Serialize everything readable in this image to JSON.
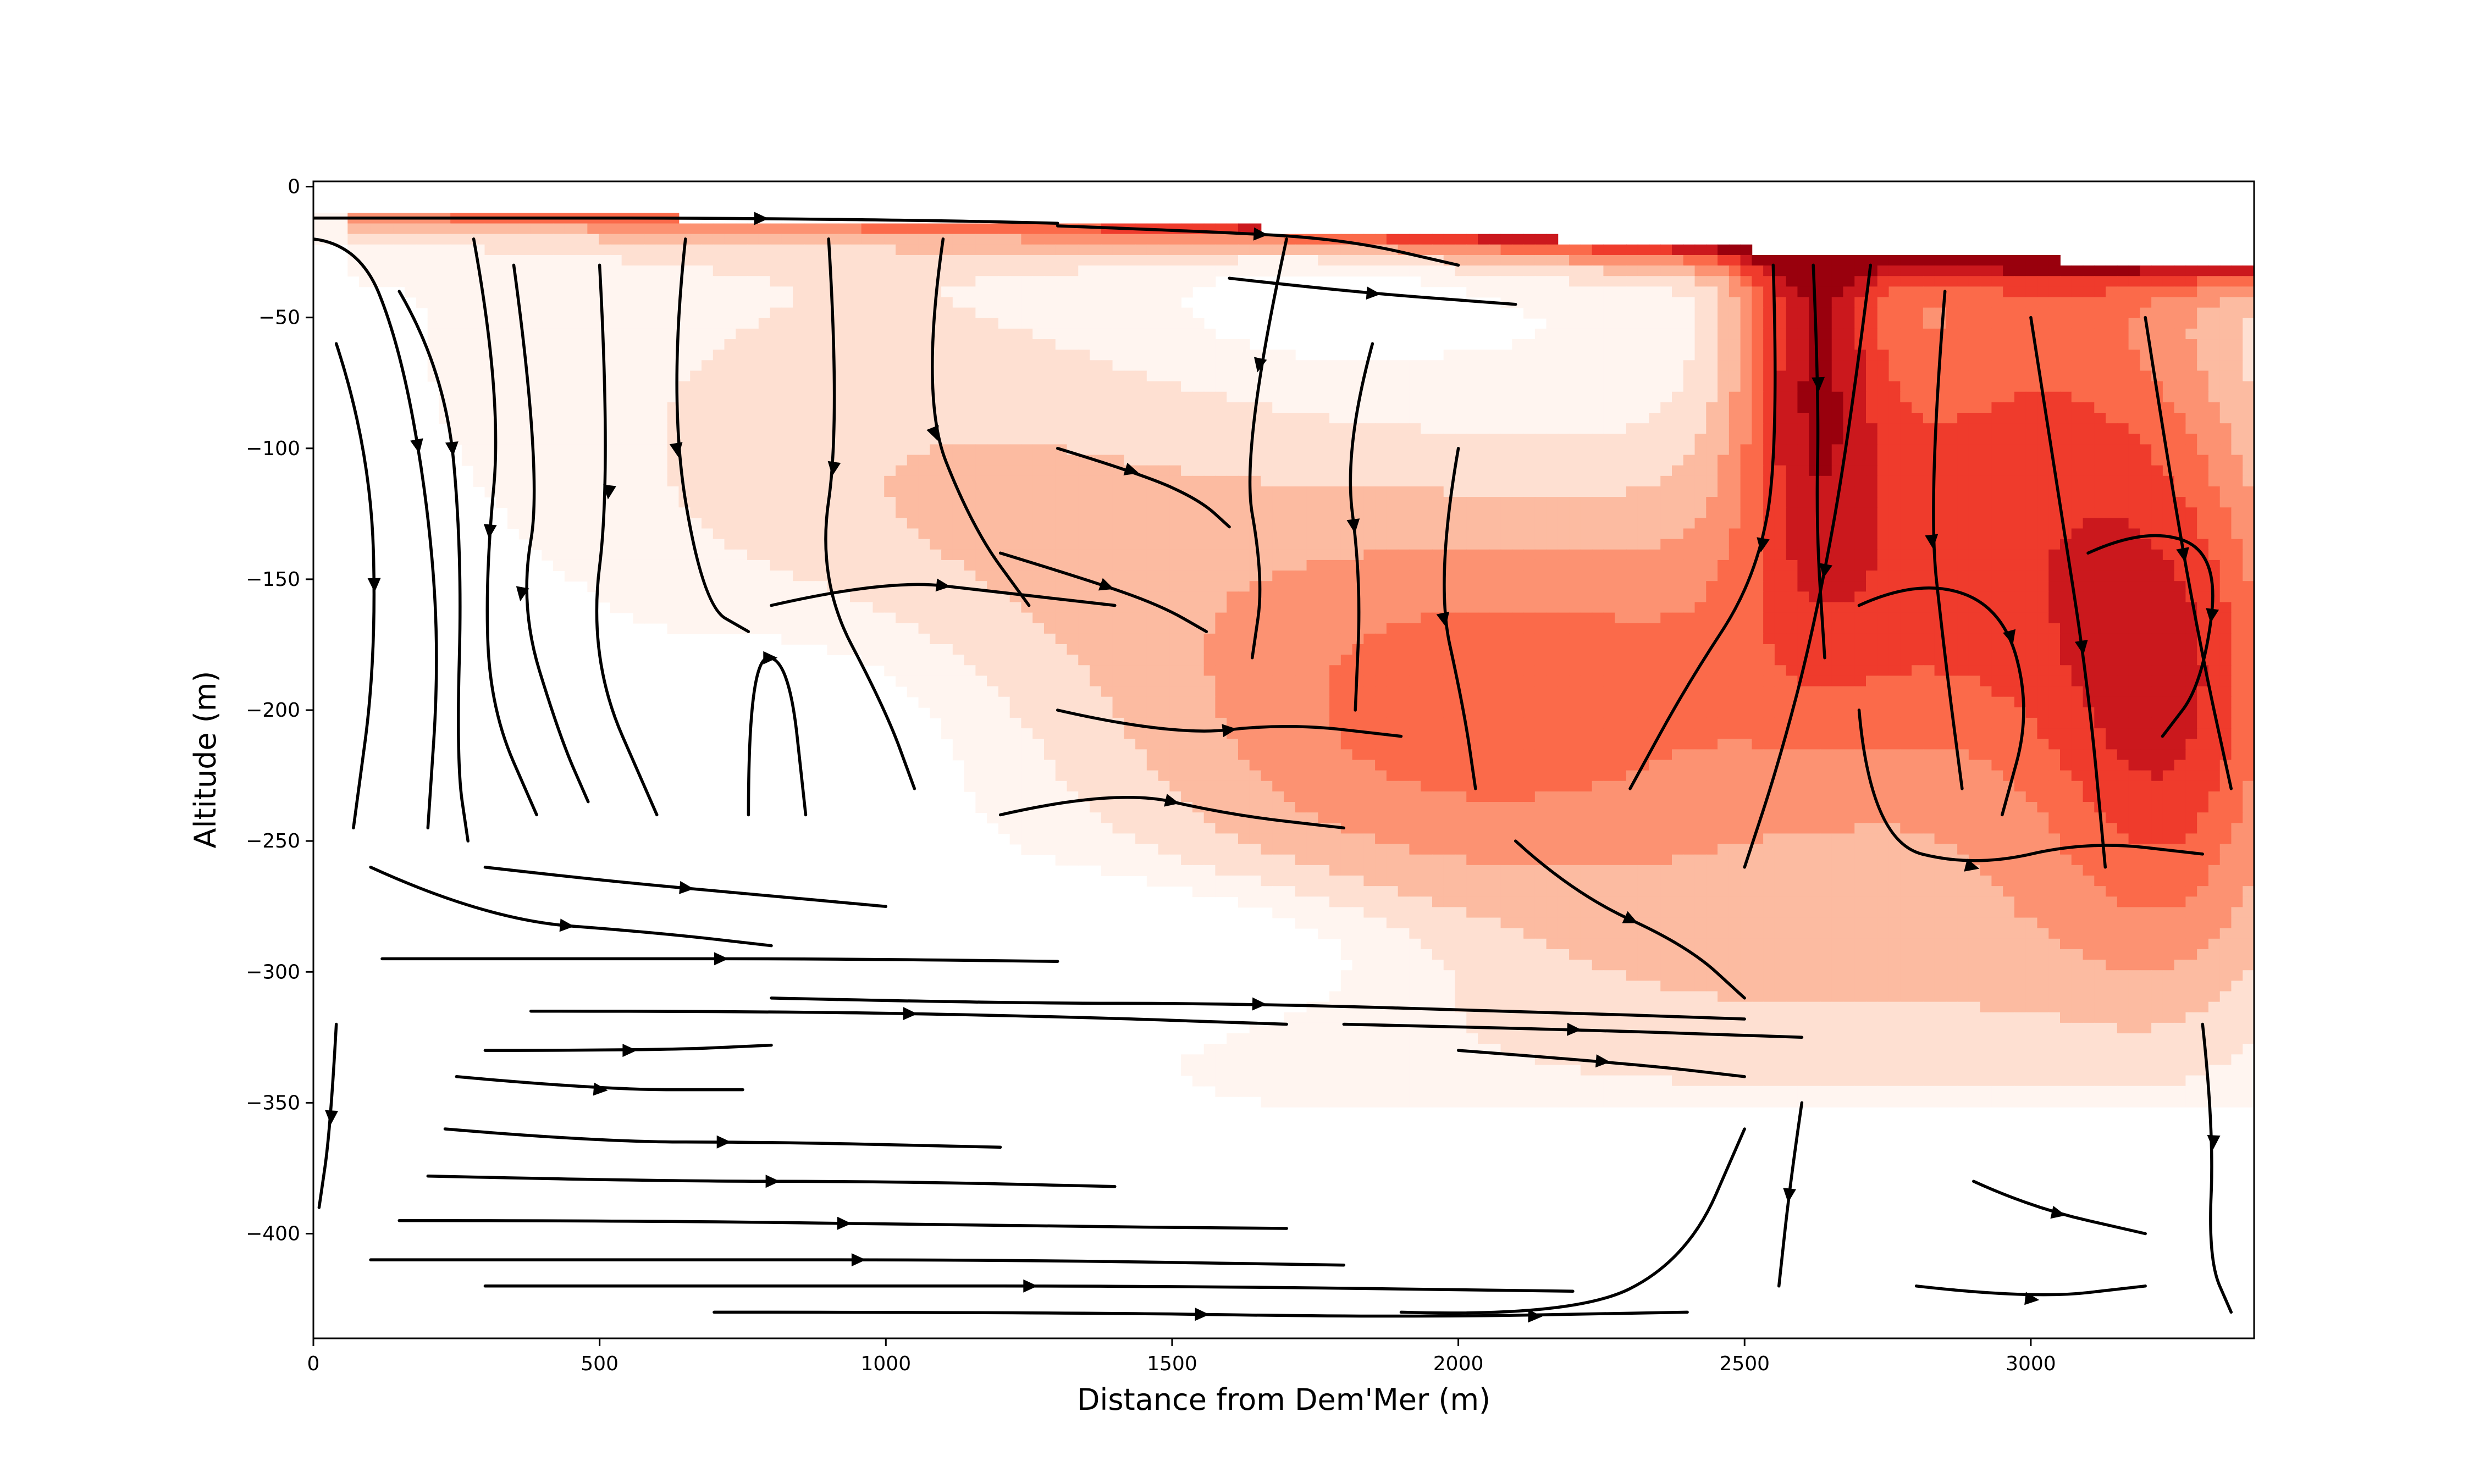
{
  "chart_data": {
    "type": "contour",
    "title": "",
    "xlabel": "Distance from Dem'Mer (m)",
    "ylabel": "Altitude (m)",
    "xlim": [
      0,
      3390
    ],
    "ylim": [
      -440,
      2
    ],
    "xticks": [
      0,
      500,
      1000,
      1500,
      2000,
      2500,
      3000
    ],
    "yticks": [
      0,
      -50,
      -100,
      -150,
      -200,
      -250,
      -300,
      -350,
      -400
    ],
    "colormap": "Reds",
    "color_levels": [
      "#fff5f0",
      "#fee0d2",
      "#fcbba1",
      "#fc9272",
      "#fb6a4a",
      "#ef3b2c",
      "#cb181d",
      "#99000d"
    ],
    "surface": [
      [
        0,
        -12
      ],
      [
        600,
        -12
      ],
      [
        1200,
        -13
      ],
      [
        1800,
        -17
      ],
      [
        2400,
        -22
      ],
      [
        2600,
        -26
      ],
      [
        3000,
        -28
      ],
      [
        3390,
        -29
      ]
    ],
    "streamlines": [
      {
        "points": [
          [
            0,
            -20
          ],
          [
            80,
            -22
          ],
          [
            150,
            -60
          ],
          [
            200,
            -120
          ],
          [
            220,
            -180
          ],
          [
            200,
            -245
          ]
        ],
        "arrow": 0.4
      },
      {
        "points": [
          [
            40,
            -60
          ],
          [
            100,
            -100
          ],
          [
            110,
            -180
          ],
          [
            70,
            -245
          ]
        ],
        "arrow": 0.5
      },
      {
        "points": [
          [
            150,
            -40
          ],
          [
            230,
            -70
          ],
          [
            260,
            -140
          ],
          [
            250,
            -220
          ],
          [
            270,
            -250
          ]
        ],
        "arrow": 0.3
      },
      {
        "points": [
          [
            280,
            -20
          ],
          [
            330,
            -80
          ],
          [
            300,
            -150
          ],
          [
            310,
            -200
          ],
          [
            390,
            -240
          ]
        ],
        "arrow": 0.5
      },
      {
        "points": [
          [
            350,
            -30
          ],
          [
            400,
            -110
          ],
          [
            360,
            -160
          ],
          [
            430,
            -210
          ],
          [
            480,
            -235
          ]
        ],
        "arrow": 0.6
      },
      {
        "points": [
          [
            500,
            -30
          ],
          [
            520,
            -110
          ],
          [
            480,
            -180
          ],
          [
            600,
            -240
          ]
        ],
        "arrow": 0.4
      },
      {
        "points": [
          [
            650,
            -20
          ],
          [
            620,
            -80
          ],
          [
            680,
            -160
          ],
          [
            760,
            -170
          ]
        ],
        "arrow": 0.5
      },
      {
        "points": [
          [
            760,
            -240
          ],
          [
            760,
            -180
          ],
          [
            830,
            -180
          ],
          [
            860,
            -240
          ]
        ],
        "arrow": 0.5
      },
      {
        "points": [
          [
            900,
            -20
          ],
          [
            920,
            -90
          ],
          [
            880,
            -150
          ],
          [
            1000,
            -200
          ],
          [
            1050,
            -230
          ]
        ],
        "arrow": 0.4
      },
      {
        "points": [
          [
            1100,
            -20
          ],
          [
            1060,
            -80
          ],
          [
            1150,
            -130
          ],
          [
            1250,
            -160
          ]
        ],
        "arrow": 0.5
      },
      {
        "points": [
          [
            0,
            -12
          ],
          [
            300,
            -12
          ],
          [
            700,
            -12
          ],
          [
            1100,
            -13
          ],
          [
            1300,
            -14
          ]
        ],
        "arrow": 0.6
      },
      {
        "points": [
          [
            1300,
            -15
          ],
          [
            1550,
            -17
          ],
          [
            1800,
            -20
          ],
          [
            2000,
            -30
          ]
        ],
        "arrow": 0.5
      },
      {
        "points": [
          [
            1600,
            -35
          ],
          [
            1800,
            -40
          ],
          [
            2100,
            -45
          ]
        ],
        "arrow": 0.5
      },
      {
        "points": [
          [
            1700,
            -20
          ],
          [
            1620,
            -100
          ],
          [
            1660,
            -150
          ],
          [
            1640,
            -180
          ]
        ],
        "arrow": 0.3
      },
      {
        "points": [
          [
            1850,
            -60
          ],
          [
            1800,
            -100
          ],
          [
            1830,
            -150
          ],
          [
            1820,
            -200
          ]
        ],
        "arrow": 0.5
      },
      {
        "points": [
          [
            2000,
            -100
          ],
          [
            1960,
            -150
          ],
          [
            2010,
            -200
          ],
          [
            2030,
            -230
          ]
        ],
        "arrow": 0.5
      },
      {
        "points": [
          [
            1300,
            -100
          ],
          [
            1450,
            -110
          ],
          [
            1550,
            -120
          ],
          [
            1600,
            -130
          ]
        ],
        "arrow": 0.4
      },
      {
        "points": [
          [
            1200,
            -140
          ],
          [
            1350,
            -150
          ],
          [
            1480,
            -160
          ],
          [
            1560,
            -170
          ]
        ],
        "arrow": 0.5
      },
      {
        "points": [
          [
            800,
            -160
          ],
          [
            1000,
            -150
          ],
          [
            1200,
            -155
          ],
          [
            1400,
            -160
          ]
        ],
        "arrow": 0.5
      },
      {
        "points": [
          [
            1300,
            -200
          ],
          [
            1500,
            -210
          ],
          [
            1700,
            -205
          ],
          [
            1900,
            -210
          ]
        ],
        "arrow": 0.5
      },
      {
        "points": [
          [
            1200,
            -240
          ],
          [
            1400,
            -230
          ],
          [
            1600,
            -240
          ],
          [
            1800,
            -245
          ]
        ],
        "arrow": 0.5
      },
      {
        "points": [
          [
            2620,
            -30
          ],
          [
            2630,
            -80
          ],
          [
            2625,
            -130
          ],
          [
            2640,
            -180
          ]
        ],
        "arrow": 0.3
      },
      {
        "points": [
          [
            2550,
            -30
          ],
          [
            2560,
            -100
          ],
          [
            2520,
            -150
          ],
          [
            2400,
            -190
          ],
          [
            2300,
            -230
          ]
        ],
        "arrow": 0.5
      },
      {
        "points": [
          [
            2720,
            -30
          ],
          [
            2680,
            -100
          ],
          [
            2620,
            -170
          ],
          [
            2560,
            -220
          ],
          [
            2500,
            -260
          ]
        ],
        "arrow": 0.5
      },
      {
        "points": [
          [
            2850,
            -40
          ],
          [
            2820,
            -120
          ],
          [
            2850,
            -180
          ],
          [
            2880,
            -230
          ]
        ],
        "arrow": 0.5
      },
      {
        "points": [
          [
            3000,
            -50
          ],
          [
            3050,
            -120
          ],
          [
            3100,
            -190
          ],
          [
            3130,
            -260
          ]
        ],
        "arrow": 0.6
      },
      {
        "points": [
          [
            3200,
            -50
          ],
          [
            3250,
            -120
          ],
          [
            3300,
            -180
          ],
          [
            3350,
            -230
          ]
        ],
        "arrow": 0.5
      },
      {
        "points": [
          [
            3100,
            -140
          ],
          [
            3200,
            -130
          ],
          [
            3330,
            -140
          ],
          [
            3300,
            -190
          ],
          [
            3230,
            -210
          ]
        ],
        "arrow": 0.6
      },
      {
        "points": [
          [
            2700,
            -160
          ],
          [
            2800,
            -150
          ],
          [
            2950,
            -160
          ],
          [
            3000,
            -200
          ],
          [
            2950,
            -240
          ]
        ],
        "arrow": 0.5
      },
      {
        "points": [
          [
            2700,
            -200
          ],
          [
            2720,
            -250
          ],
          [
            2900,
            -260
          ],
          [
            3100,
            -250
          ],
          [
            3300,
            -255
          ]
        ],
        "arrow": 0.5
      },
      {
        "points": [
          [
            2100,
            -250
          ],
          [
            2200,
            -270
          ],
          [
            2400,
            -290
          ],
          [
            2500,
            -310
          ]
        ],
        "arrow": 0.5
      },
      {
        "points": [
          [
            300,
            -260
          ],
          [
            500,
            -265
          ],
          [
            750,
            -270
          ],
          [
            1000,
            -275
          ]
        ],
        "arrow": 0.5
      },
      {
        "points": [
          [
            100,
            -260
          ],
          [
            300,
            -280
          ],
          [
            600,
            -285
          ],
          [
            800,
            -290
          ]
        ],
        "arrow": 0.5
      },
      {
        "points": [
          [
            120,
            -295
          ],
          [
            500,
            -295
          ],
          [
            900,
            -295
          ],
          [
            1300,
            -296
          ]
        ],
        "arrow": 0.5
      },
      {
        "points": [
          [
            800,
            -310
          ],
          [
            1200,
            -312
          ],
          [
            1600,
            -312
          ],
          [
            2100,
            -315
          ],
          [
            2500,
            -318
          ]
        ],
        "arrow": 0.5
      },
      {
        "points": [
          [
            380,
            -315
          ],
          [
            800,
            -315
          ],
          [
            1300,
            -317
          ],
          [
            1700,
            -320
          ]
        ],
        "arrow": 0.5
      },
      {
        "points": [
          [
            1800,
            -320
          ],
          [
            2200,
            -322
          ],
          [
            2600,
            -325
          ]
        ],
        "arrow": 0.5
      },
      {
        "points": [
          [
            2000,
            -330
          ],
          [
            2300,
            -335
          ],
          [
            2500,
            -340
          ]
        ],
        "arrow": 0.5
      },
      {
        "points": [
          [
            300,
            -330
          ],
          [
            600,
            -330
          ],
          [
            800,
            -328
          ]
        ],
        "arrow": 0.5
      },
      {
        "points": [
          [
            250,
            -340
          ],
          [
            500,
            -345
          ],
          [
            750,
            -345
          ]
        ],
        "arrow": 0.5
      },
      {
        "points": [
          [
            230,
            -360
          ],
          [
            500,
            -365
          ],
          [
            800,
            -365
          ],
          [
            1200,
            -367
          ]
        ],
        "arrow": 0.5
      },
      {
        "points": [
          [
            200,
            -378
          ],
          [
            600,
            -380
          ],
          [
            1000,
            -380
          ],
          [
            1400,
            -382
          ]
        ],
        "arrow": 0.5
      },
      {
        "points": [
          [
            150,
            -395
          ],
          [
            600,
            -395
          ],
          [
            1200,
            -397
          ],
          [
            1700,
            -398
          ]
        ],
        "arrow": 0.5
      },
      {
        "points": [
          [
            100,
            -410
          ],
          [
            600,
            -410
          ],
          [
            1200,
            -410
          ],
          [
            1800,
            -412
          ]
        ],
        "arrow": 0.5
      },
      {
        "points": [
          [
            300,
            -420
          ],
          [
            900,
            -420
          ],
          [
            1500,
            -420
          ],
          [
            2200,
            -422
          ]
        ],
        "arrow": 0.5
      },
      {
        "points": [
          [
            700,
            -430
          ],
          [
            1300,
            -430
          ],
          [
            1900,
            -432
          ],
          [
            2400,
            -430
          ]
        ],
        "arrow": 0.5
      },
      {
        "points": [
          [
            1900,
            -430
          ],
          [
            2200,
            -432
          ],
          [
            2400,
            -410
          ],
          [
            2500,
            -360
          ]
        ],
        "arrow": 0.3
      },
      {
        "points": [
          [
            2600,
            -350
          ],
          [
            2580,
            -380
          ],
          [
            2560,
            -420
          ]
        ],
        "arrow": 0.5
      },
      {
        "points": [
          [
            3300,
            -320
          ],
          [
            3320,
            -360
          ],
          [
            3310,
            -410
          ],
          [
            3350,
            -430
          ]
        ],
        "arrow": 0.4
      },
      {
        "points": [
          [
            2900,
            -380
          ],
          [
            3000,
            -390
          ],
          [
            3200,
            -400
          ]
        ],
        "arrow": 0.5
      },
      {
        "points": [
          [
            2800,
            -420
          ],
          [
            3000,
            -425
          ],
          [
            3200,
            -420
          ]
        ],
        "arrow": 0.5
      },
      {
        "points": [
          [
            40,
            -320
          ],
          [
            30,
            -360
          ],
          [
            10,
            -390
          ]
        ],
        "arrow": 0.5
      }
    ]
  }
}
